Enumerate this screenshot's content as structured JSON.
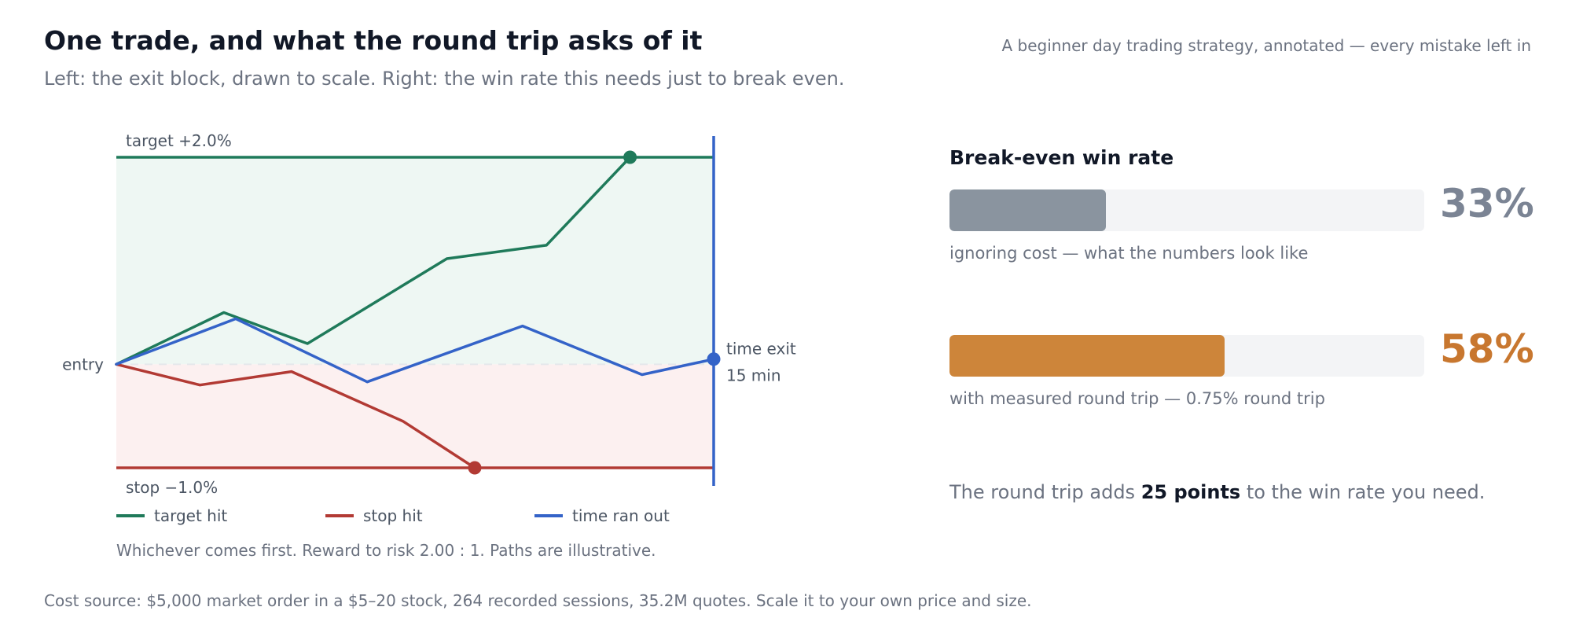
{
  "header": {
    "title": "One trade, and what the round trip asks of it",
    "subtitle": "Left: the exit block, drawn to scale. Right: the win rate this needs just to break even.",
    "tagline": "A beginner day trading strategy, annotated — every mistake left in"
  },
  "colors": {
    "target": "#1f7a5a",
    "stop": "#b23a34",
    "time": "#3463c8",
    "ignoring_bar": "#8a949f",
    "measured_bar": "#cd853a",
    "track": "#f3f4f6",
    "target_zone": "#eef7f3",
    "stop_zone": "#fcf0f0"
  },
  "chart_data": {
    "type": "line",
    "y_unit": "% move from entry",
    "x_unit": "minutes",
    "xlim": [
      0,
      15
    ],
    "ylim": [
      -1.0,
      2.0
    ],
    "levels": {
      "target": {
        "label": "target +2.0%",
        "value": 2.0
      },
      "stop": {
        "label": "stop −1.0%",
        "value": -1.0
      },
      "entry": {
        "label": "entry",
        "value": 0.0
      },
      "time_exit": {
        "label": "time exit",
        "sublabel": "15 min",
        "value": 15
      }
    },
    "series": [
      {
        "name": "target hit",
        "key": "target",
        "points": [
          [
            0,
            0.0
          ],
          [
            2.7,
            0.5
          ],
          [
            4.8,
            0.2
          ],
          [
            8.3,
            1.02
          ],
          [
            10.8,
            1.15
          ],
          [
            12.9,
            2.0
          ]
        ],
        "end_marker": [
          12.9,
          2.0
        ]
      },
      {
        "name": "stop hit",
        "key": "stop",
        "points": [
          [
            0,
            0.0
          ],
          [
            2.1,
            -0.2
          ],
          [
            4.4,
            -0.07
          ],
          [
            7.2,
            -0.55
          ],
          [
            9.0,
            -1.0
          ]
        ],
        "end_marker": [
          9.0,
          -1.0
        ]
      },
      {
        "name": "time ran out",
        "key": "time",
        "points": [
          [
            0,
            0.0
          ],
          [
            3.0,
            0.44
          ],
          [
            6.3,
            -0.17
          ],
          [
            10.2,
            0.37
          ],
          [
            13.2,
            -0.1
          ],
          [
            15.0,
            0.05
          ]
        ],
        "end_marker": [
          15.0,
          0.05
        ]
      }
    ],
    "legend_position": "bottom",
    "note": "Whichever comes first. Reward to risk 2.00 : 1. Paths are illustrative."
  },
  "panel": {
    "title": "Break-even win rate",
    "bars": [
      {
        "value": 33,
        "display": "33%",
        "caption": "ignoring cost — what the numbers look like"
      },
      {
        "value": 58,
        "display": "58%",
        "caption": "with measured round trip — 0.75% round trip"
      }
    ],
    "summary_pre": "The round trip adds ",
    "summary_strong": "25 points",
    "summary_post": " to the win rate you need."
  },
  "footnote": "Cost source: $5,000 market order in a $5–20 stock, 264 recorded sessions, 35.2M quotes. Scale it to your own price and size."
}
